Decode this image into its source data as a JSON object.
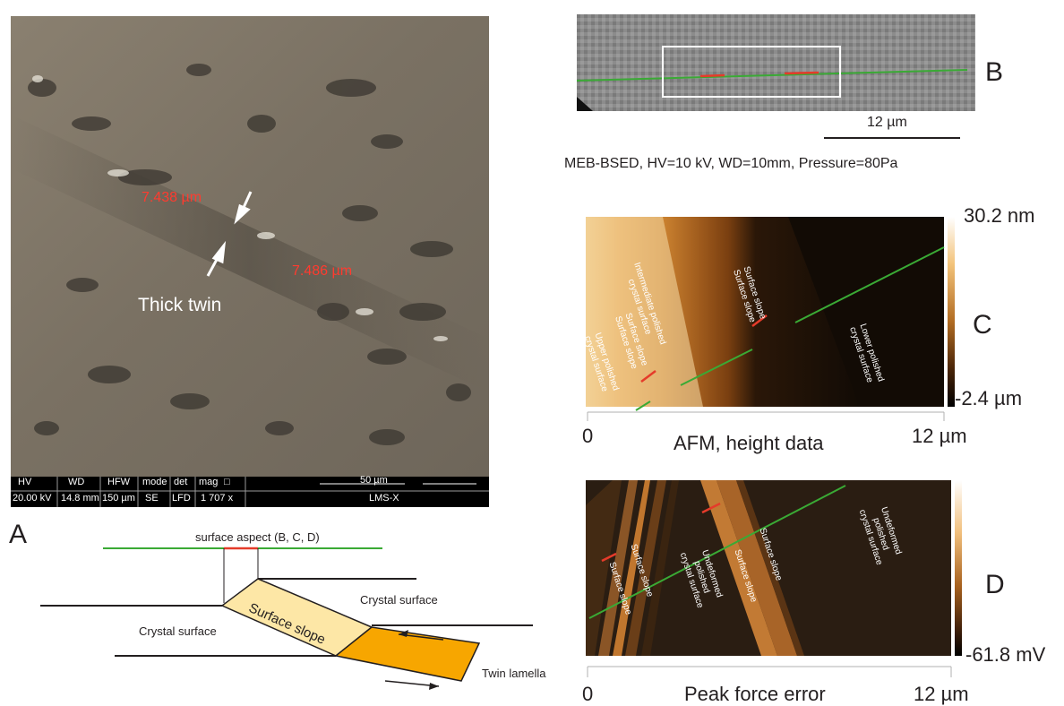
{
  "panel_a": {
    "letter": "A",
    "sem": {
      "measure_1": "7.438 µm",
      "measure_2": "7.486 µm",
      "twin_label": "Thick twin",
      "info_headers": [
        "HV",
        "WD",
        "HFW",
        "mode",
        "det",
        "mag",
        "□",
        "50 µm"
      ],
      "info_values": [
        "20.00 kV",
        "14.8 mm",
        "150 µm",
        "SE",
        "LFD",
        "1 707 x",
        "LMS-X"
      ]
    },
    "schematic": {
      "surface_aspect": "surface aspect (B, C, D)",
      "crystal_surface_left": "Crystal surface",
      "crystal_surface_right": "Crystal surface",
      "surface_slope": "Surface slope",
      "twin_lamella": "Twin lamella"
    }
  },
  "panel_b": {
    "letter": "B",
    "scale_label": "12 µm",
    "caption": "MEB-BSED, HV=10 kV, WD=10mm, Pressure=80Pa"
  },
  "panel_c": {
    "letter": "C",
    "cbar_max": "30.2 nm",
    "cbar_min": "-2.4 µm",
    "x_start": "0",
    "x_end": "12 µm",
    "title": "AFM, height data",
    "regions": {
      "intermediate": [
        "Intermediate polished",
        "crystal surface"
      ],
      "slope_upper_1": "Surface slope",
      "slope_upper_2": "Surface slope",
      "upper": [
        "Upper polished",
        "crystal surface"
      ],
      "slope_lower_1": "Surface slope",
      "slope_lower_2": "Surface slope",
      "lower": [
        "Lower polished",
        "crystal surface"
      ]
    }
  },
  "panel_d": {
    "letter": "D",
    "cbar_min": "-61.8 mV",
    "x_start": "0",
    "x_end": "12 µm",
    "title": "Peak force error",
    "regions": {
      "slope_1": "Surface slope",
      "slope_2": "Surface slope",
      "undeformed_mid": [
        "Undeformed",
        "polished",
        "crystal surface"
      ],
      "slope_3": "Surface slope",
      "slope_4": "Surface slope",
      "undeformed_right": [
        "Undeformed",
        "polished",
        "crystal surface"
      ]
    }
  },
  "colors": {
    "green_line": "#3aaa35",
    "red_segment": "#e53b2a",
    "slope_fill": "#fde7a6",
    "twin_fill": "#f7a600",
    "measure_red": "#ff3b2f"
  }
}
